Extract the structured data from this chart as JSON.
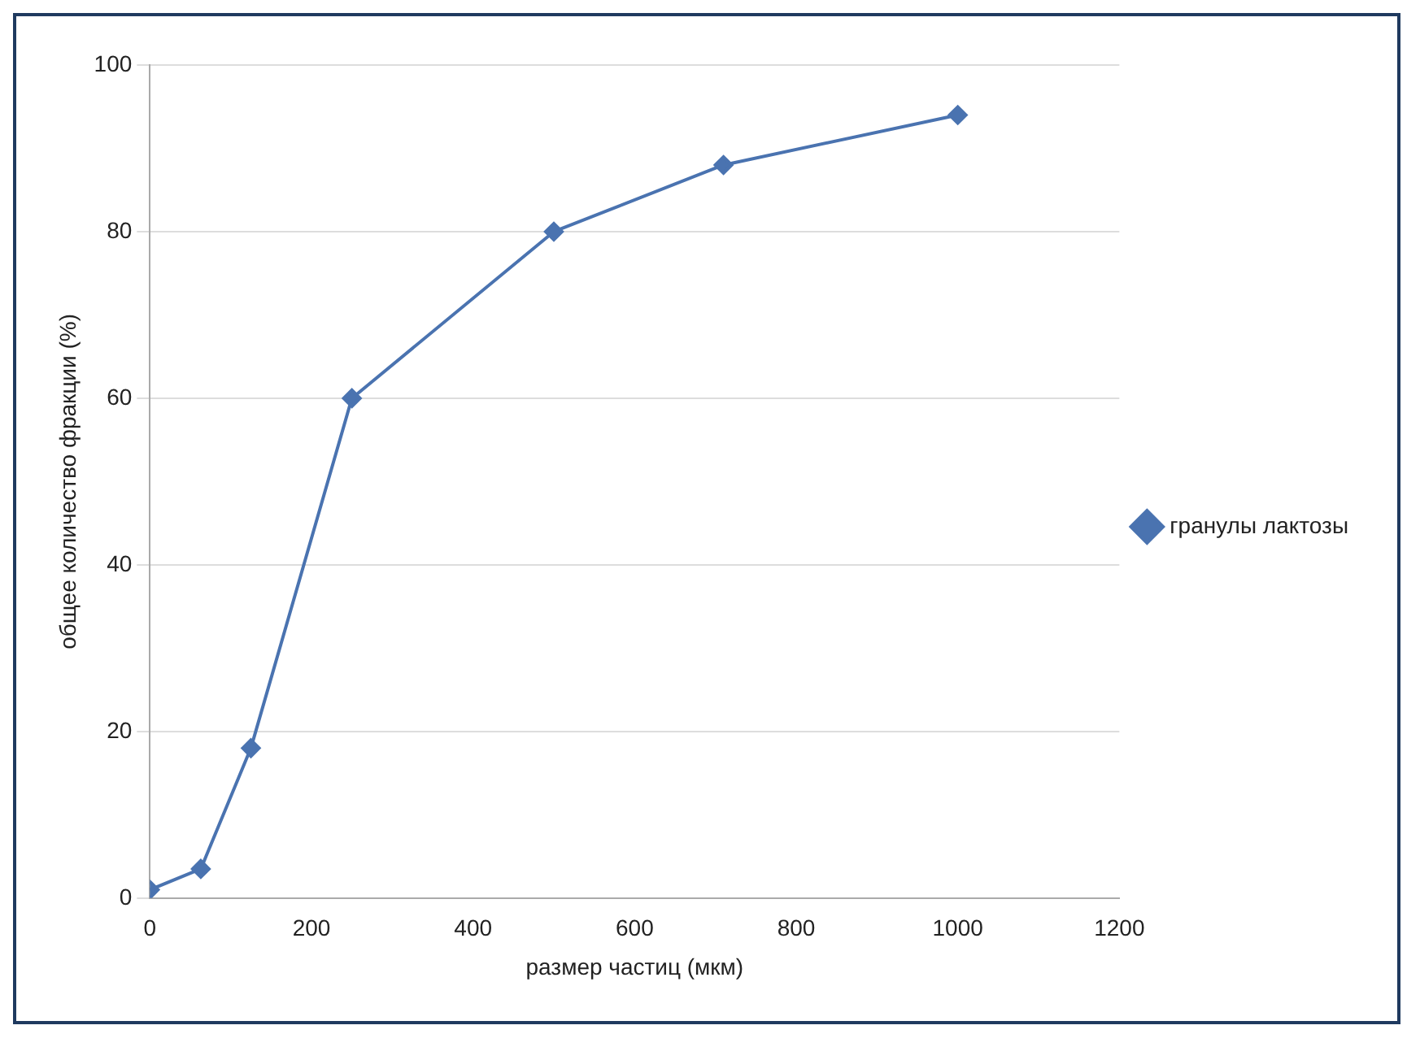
{
  "chart_data": {
    "type": "line",
    "xlabel": "размер частиц (мкм)",
    "ylabel": "общее количество фракции (%)",
    "x": [
      0,
      63,
      125,
      250,
      500,
      710,
      1000
    ],
    "series": [
      {
        "name": "гранулы лактозы",
        "color": "#4a73b0",
        "values": [
          1,
          3.5,
          18,
          60,
          80,
          88,
          94
        ]
      }
    ],
    "xlim": [
      0,
      1200
    ],
    "xticks": [
      0,
      200,
      400,
      600,
      800,
      1000,
      1200
    ],
    "ylim": [
      0,
      100
    ],
    "yticks": [
      0,
      20,
      40,
      60,
      80,
      100
    ],
    "grid": "y",
    "legend": "right",
    "marker": "diamond",
    "line_style": "solid"
  }
}
